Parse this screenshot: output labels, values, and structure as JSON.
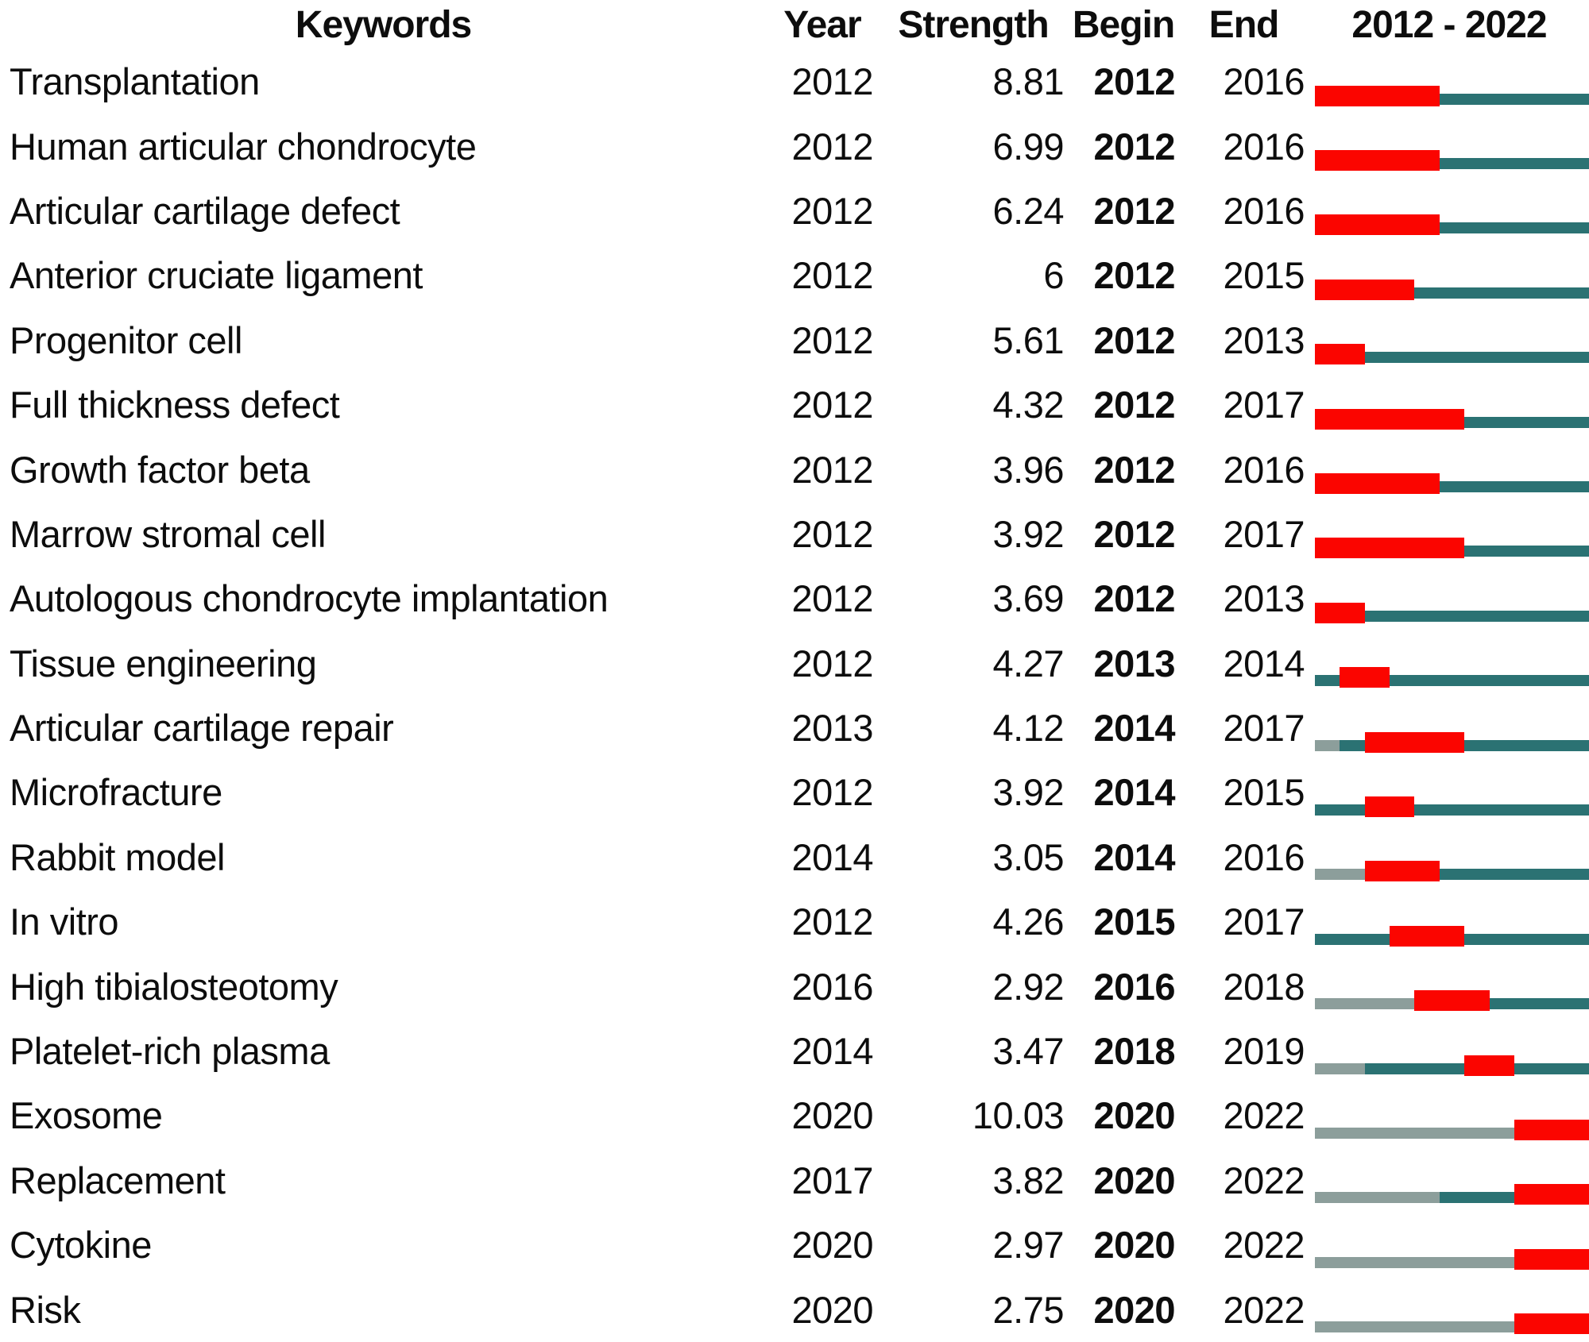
{
  "header": {
    "keywords": "Keywords",
    "year": "Year",
    "strength": "Strength",
    "begin": "Begin",
    "end": "End",
    "timeline": "2012 - 2022"
  },
  "colors": {
    "burst": "#fb0500",
    "active": "#2b7273",
    "pre": "#8c9e9b"
  },
  "timeline": {
    "start_year": 2012,
    "end_year": 2022,
    "total_years": 11
  },
  "rows": [
    {
      "keyword": "Transplantation",
      "year": "2012",
      "strength": "8.81",
      "begin": "2012",
      "end": "2016",
      "segments": [
        {
          "type": "burst",
          "years": 5
        },
        {
          "type": "active",
          "years": 6
        }
      ]
    },
    {
      "keyword": "Human articular chondrocyte",
      "year": "2012",
      "strength": "6.99",
      "begin": "2012",
      "end": "2016",
      "segments": [
        {
          "type": "burst",
          "years": 5
        },
        {
          "type": "active",
          "years": 6
        }
      ]
    },
    {
      "keyword": "Articular cartilage defect",
      "year": "2012",
      "strength": "6.24",
      "begin": "2012",
      "end": "2016",
      "segments": [
        {
          "type": "burst",
          "years": 5
        },
        {
          "type": "active",
          "years": 6
        }
      ]
    },
    {
      "keyword": "Anterior cruciate ligament",
      "year": "2012",
      "strength": "6",
      "begin": "2012",
      "end": "2015",
      "segments": [
        {
          "type": "burst",
          "years": 4
        },
        {
          "type": "active",
          "years": 7
        }
      ]
    },
    {
      "keyword": "Progenitor cell",
      "year": "2012",
      "strength": "5.61",
      "begin": "2012",
      "end": "2013",
      "segments": [
        {
          "type": "burst",
          "years": 2
        },
        {
          "type": "active",
          "years": 9
        }
      ]
    },
    {
      "keyword": "Full thickness defect",
      "year": "2012",
      "strength": "4.32",
      "begin": "2012",
      "end": "2017",
      "segments": [
        {
          "type": "burst",
          "years": 6
        },
        {
          "type": "active",
          "years": 5
        }
      ]
    },
    {
      "keyword": "Growth factor beta",
      "year": "2012",
      "strength": "3.96",
      "begin": "2012",
      "end": "2016",
      "segments": [
        {
          "type": "burst",
          "years": 5
        },
        {
          "type": "active",
          "years": 6
        }
      ]
    },
    {
      "keyword": "Marrow stromal cell",
      "year": "2012",
      "strength": "3.92",
      "begin": "2012",
      "end": "2017",
      "segments": [
        {
          "type": "burst",
          "years": 6
        },
        {
          "type": "active",
          "years": 5
        }
      ]
    },
    {
      "keyword": "Autologous chondrocyte implantation",
      "year": "2012",
      "strength": "3.69",
      "begin": "2012",
      "end": "2013",
      "segments": [
        {
          "type": "burst",
          "years": 2
        },
        {
          "type": "active",
          "years": 9
        }
      ]
    },
    {
      "keyword": "Tissue engineering",
      "year": "2012",
      "strength": "4.27",
      "begin": "2013",
      "end": "2014",
      "segments": [
        {
          "type": "active",
          "years": 1
        },
        {
          "type": "burst",
          "years": 2
        },
        {
          "type": "active",
          "years": 8
        }
      ]
    },
    {
      "keyword": "Articular cartilage repair",
      "year": "2013",
      "strength": "4.12",
      "begin": "2014",
      "end": "2017",
      "segments": [
        {
          "type": "pre",
          "years": 1
        },
        {
          "type": "active",
          "years": 1
        },
        {
          "type": "burst",
          "years": 4
        },
        {
          "type": "active",
          "years": 5
        }
      ]
    },
    {
      "keyword": "Microfracture",
      "year": "2012",
      "strength": "3.92",
      "begin": "2014",
      "end": "2015",
      "segments": [
        {
          "type": "active",
          "years": 2
        },
        {
          "type": "burst",
          "years": 2
        },
        {
          "type": "active",
          "years": 7
        }
      ]
    },
    {
      "keyword": "Rabbit model",
      "year": "2014",
      "strength": "3.05",
      "begin": "2014",
      "end": "2016",
      "segments": [
        {
          "type": "pre",
          "years": 2
        },
        {
          "type": "burst",
          "years": 3
        },
        {
          "type": "active",
          "years": 6
        }
      ]
    },
    {
      "keyword": "In vitro",
      "year": "2012",
      "strength": "4.26",
      "begin": "2015",
      "end": "2017",
      "segments": [
        {
          "type": "active",
          "years": 3
        },
        {
          "type": "burst",
          "years": 3
        },
        {
          "type": "active",
          "years": 5
        }
      ]
    },
    {
      "keyword": "High tibialosteotomy",
      "year": "2016",
      "strength": "2.92",
      "begin": "2016",
      "end": "2018",
      "segments": [
        {
          "type": "pre",
          "years": 4
        },
        {
          "type": "burst",
          "years": 3
        },
        {
          "type": "active",
          "years": 4
        }
      ]
    },
    {
      "keyword": "Platelet-rich plasma",
      "year": "2014",
      "strength": "3.47",
      "begin": "2018",
      "end": "2019",
      "segments": [
        {
          "type": "pre",
          "years": 2
        },
        {
          "type": "active",
          "years": 4
        },
        {
          "type": "burst",
          "years": 2
        },
        {
          "type": "active",
          "years": 3
        }
      ]
    },
    {
      "keyword": "Exosome",
      "year": "2020",
      "strength": "10.03",
      "begin": "2020",
      "end": "2022",
      "segments": [
        {
          "type": "pre",
          "years": 8
        },
        {
          "type": "burst",
          "years": 3
        }
      ]
    },
    {
      "keyword": "Replacement",
      "year": "2017",
      "strength": "3.82",
      "begin": "2020",
      "end": "2022",
      "segments": [
        {
          "type": "pre",
          "years": 5
        },
        {
          "type": "active",
          "years": 3
        },
        {
          "type": "burst",
          "years": 3
        }
      ]
    },
    {
      "keyword": "Cytokine",
      "year": "2020",
      "strength": "2.97",
      "begin": "2020",
      "end": "2022",
      "segments": [
        {
          "type": "pre",
          "years": 8
        },
        {
          "type": "burst",
          "years": 3
        }
      ]
    },
    {
      "keyword": "Risk",
      "year": "2020",
      "strength": "2.75",
      "begin": "2020",
      "end": "2022",
      "segments": [
        {
          "type": "pre",
          "years": 8
        },
        {
          "type": "burst",
          "years": 3
        }
      ]
    }
  ],
  "chart_data": {
    "type": "table",
    "columns": [
      "Keywords",
      "Year",
      "Strength",
      "Begin",
      "End",
      "2012 - 2022"
    ],
    "timeline_axis": {
      "start": 2012,
      "end": 2022
    },
    "legend": {
      "burst_period_color": "#fb0500",
      "active_period_color": "#2b7273",
      "pre_appearance_color": "#8c9e9b"
    },
    "rows": [
      {
        "keyword": "Transplantation",
        "year": 2012,
        "strength": 8.81,
        "burst_begin": 2012,
        "burst_end": 2016
      },
      {
        "keyword": "Human articular chondrocyte",
        "year": 2012,
        "strength": 6.99,
        "burst_begin": 2012,
        "burst_end": 2016
      },
      {
        "keyword": "Articular cartilage defect",
        "year": 2012,
        "strength": 6.24,
        "burst_begin": 2012,
        "burst_end": 2016
      },
      {
        "keyword": "Anterior cruciate ligament",
        "year": 2012,
        "strength": 6,
        "burst_begin": 2012,
        "burst_end": 2015
      },
      {
        "keyword": "Progenitor cell",
        "year": 2012,
        "strength": 5.61,
        "burst_begin": 2012,
        "burst_end": 2013
      },
      {
        "keyword": "Full thickness defect",
        "year": 2012,
        "strength": 4.32,
        "burst_begin": 2012,
        "burst_end": 2017
      },
      {
        "keyword": "Growth factor beta",
        "year": 2012,
        "strength": 3.96,
        "burst_begin": 2012,
        "burst_end": 2016
      },
      {
        "keyword": "Marrow stromal cell",
        "year": 2012,
        "strength": 3.92,
        "burst_begin": 2012,
        "burst_end": 2017
      },
      {
        "keyword": "Autologous chondrocyte implantation",
        "year": 2012,
        "strength": 3.69,
        "burst_begin": 2012,
        "burst_end": 2013
      },
      {
        "keyword": "Tissue engineering",
        "year": 2012,
        "strength": 4.27,
        "burst_begin": 2013,
        "burst_end": 2014
      },
      {
        "keyword": "Articular cartilage repair",
        "year": 2013,
        "strength": 4.12,
        "burst_begin": 2014,
        "burst_end": 2017
      },
      {
        "keyword": "Microfracture",
        "year": 2012,
        "strength": 3.92,
        "burst_begin": 2014,
        "burst_end": 2015
      },
      {
        "keyword": "Rabbit model",
        "year": 2014,
        "strength": 3.05,
        "burst_begin": 2014,
        "burst_end": 2016
      },
      {
        "keyword": "In vitro",
        "year": 2012,
        "strength": 4.26,
        "burst_begin": 2015,
        "burst_end": 2017
      },
      {
        "keyword": "High tibialosteotomy",
        "year": 2016,
        "strength": 2.92,
        "burst_begin": 2016,
        "burst_end": 2018
      },
      {
        "keyword": "Platelet-rich plasma",
        "year": 2014,
        "strength": 3.47,
        "burst_begin": 2018,
        "burst_end": 2019
      },
      {
        "keyword": "Exosome",
        "year": 2020,
        "strength": 10.03,
        "burst_begin": 2020,
        "burst_end": 2022
      },
      {
        "keyword": "Replacement",
        "year": 2017,
        "strength": 3.82,
        "burst_begin": 2020,
        "burst_end": 2022
      },
      {
        "keyword": "Cytokine",
        "year": 2020,
        "strength": 2.97,
        "burst_begin": 2020,
        "burst_end": 2022
      },
      {
        "keyword": "Risk",
        "year": 2020,
        "strength": 2.75,
        "burst_begin": 2020,
        "burst_end": 2022
      }
    ]
  }
}
